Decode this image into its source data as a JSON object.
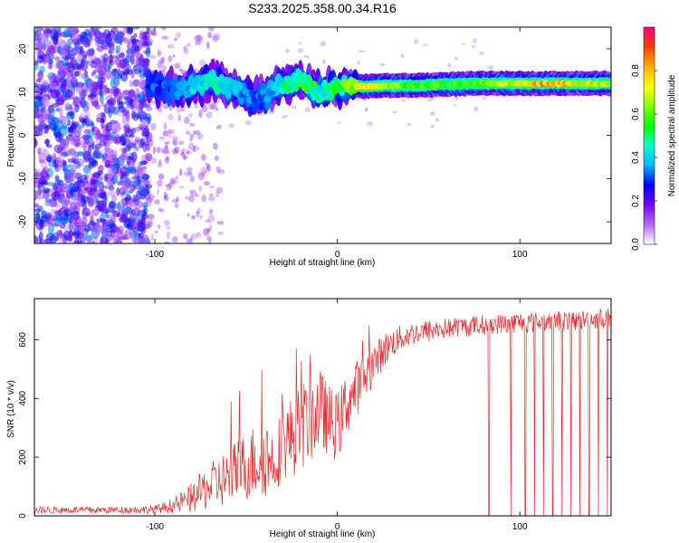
{
  "title": "S233.2025.358.00.34.R16",
  "chart_data": [
    {
      "type": "heatmap",
      "xlabel": "Height of straight line (km)",
      "ylabel": "Frequency (Hz)",
      "xlim": [
        -166,
        150
      ],
      "ylim": [
        -25,
        25
      ],
      "xticks": [
        -100,
        0,
        100
      ],
      "yticks": [
        -20,
        -10,
        0,
        10,
        20
      ],
      "colorbar": {
        "label": "Normalized spectral amplitude",
        "range": [
          0,
          1
        ],
        "ticks": [
          0.0,
          0.2,
          0.4,
          0.6,
          0.8
        ],
        "tick_labels": [
          "0.0",
          "0.2",
          "0.4",
          "0.6",
          "0.8"
        ],
        "colors": [
          "#ffffff",
          "#b36bff",
          "#7a00ff",
          "#0000ff",
          "#00b4ff",
          "#00ffd0",
          "#00ff00",
          "#7fff00",
          "#ffff00",
          "#ffb000",
          "#ff4000",
          "#ff0080"
        ]
      },
      "features": {
        "noise_region_x": [
          -166,
          -103
        ],
        "noise_region_amplitude": 0.3,
        "signal_trace": [
          {
            "x": -103,
            "y": 11.5,
            "amp": 0.3
          },
          {
            "x": -95,
            "y": 11.0,
            "amp": 0.3
          },
          {
            "x": -85,
            "y": 10.5,
            "amp": 0.35
          },
          {
            "x": -75,
            "y": 12.0,
            "amp": 0.4
          },
          {
            "x": -68,
            "y": 12.5,
            "amp": 0.45
          },
          {
            "x": -60,
            "y": 11.5,
            "amp": 0.4
          },
          {
            "x": -52,
            "y": 10.0,
            "amp": 0.35
          },
          {
            "x": -45,
            "y": 8.5,
            "amp": 0.3
          },
          {
            "x": -38,
            "y": 9.5,
            "amp": 0.35
          },
          {
            "x": -30,
            "y": 12.0,
            "amp": 0.45
          },
          {
            "x": -22,
            "y": 12.5,
            "amp": 0.5
          },
          {
            "x": -15,
            "y": 11.5,
            "amp": 0.55
          },
          {
            "x": -10,
            "y": 10.0,
            "amp": 0.45
          },
          {
            "x": -3,
            "y": 11.0,
            "amp": 0.5
          },
          {
            "x": 5,
            "y": 11.5,
            "amp": 0.6
          },
          {
            "x": 15,
            "y": 11.3,
            "amp": 0.75
          },
          {
            "x": 25,
            "y": 11.5,
            "amp": 0.65
          },
          {
            "x": 40,
            "y": 11.5,
            "amp": 0.6
          },
          {
            "x": 60,
            "y": 11.8,
            "amp": 0.55
          },
          {
            "x": 80,
            "y": 12.0,
            "amp": 0.6
          },
          {
            "x": 100,
            "y": 12.0,
            "amp": 0.7
          },
          {
            "x": 115,
            "y": 12.0,
            "amp": 0.8
          },
          {
            "x": 135,
            "y": 12.0,
            "amp": 0.7
          },
          {
            "x": 150,
            "y": 12.0,
            "amp": 0.65
          }
        ]
      }
    },
    {
      "type": "line",
      "xlabel": "Height of straight line (km)",
      "ylabel": "SNR (10 * v/v)",
      "xlim": [
        -166,
        150
      ],
      "ylim": [
        0,
        740
      ],
      "xticks": [
        -100,
        0,
        100
      ],
      "yticks": [
        0,
        200,
        400,
        600
      ],
      "color": "#e8282a",
      "series": [
        {
          "x": [
            -166,
            -140,
            -120,
            -100,
            -90,
            -80,
            -70,
            -60,
            -50,
            -45,
            -40,
            -35,
            -30,
            -25,
            -20,
            -15,
            -10,
            -5,
            0,
            5,
            10,
            15,
            20,
            25,
            30,
            40,
            50,
            60,
            70,
            80,
            90,
            100,
            110,
            120,
            130,
            140,
            150
          ],
          "values": [
            20,
            20,
            20,
            22,
            35,
            60,
            100,
            130,
            170,
            190,
            210,
            180,
            250,
            270,
            300,
            330,
            360,
            330,
            300,
            380,
            430,
            470,
            520,
            560,
            590,
            620,
            630,
            640,
            645,
            650,
            655,
            660,
            660,
            665,
            665,
            670,
            675
          ],
          "spread": [
            12,
            12,
            12,
            14,
            25,
            50,
            80,
            100,
            120,
            130,
            150,
            110,
            130,
            140,
            150,
            150,
            150,
            120,
            120,
            110,
            100,
            80,
            70,
            60,
            50,
            40,
            40,
            35,
            35,
            35,
            35,
            35,
            35,
            35,
            35,
            35,
            35
          ],
          "dropouts_x": [
            83,
            95,
            103,
            108,
            113,
            118,
            123,
            128,
            133,
            138,
            143,
            148
          ]
        }
      ]
    }
  ]
}
